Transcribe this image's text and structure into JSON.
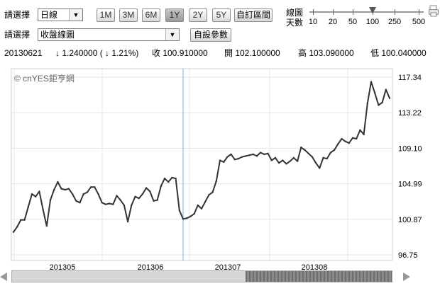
{
  "toolbar": {
    "row1_label": "請選擇",
    "period_select": "日線",
    "range_buttons": [
      {
        "label": "1M",
        "active": false
      },
      {
        "label": "3M",
        "active": false
      },
      {
        "label": "6M",
        "active": false
      },
      {
        "label": "1Y",
        "active": true
      },
      {
        "label": "2Y",
        "active": false
      },
      {
        "label": "5Y",
        "active": false
      }
    ],
    "custom_range_button": "自訂區間",
    "ma_label_line1": "線圖",
    "ma_label_line2": "天數",
    "ma_ticks": [
      "10",
      "20",
      "50",
      "100",
      "250",
      "500"
    ],
    "ma_selected": "100",
    "row2_label": "請選擇",
    "chart_type_select": "收盤線圖",
    "custom_params_button": "自設參數"
  },
  "quote": {
    "date": "20130621",
    "change": "↓ 1.240000 ( ↓ 1.21%)",
    "close": "收 100.910000",
    "open": "開 102.100000",
    "high": "高 103.090000",
    "low": "低 100.040000"
  },
  "watermark": "© cnYES鉅亨網",
  "colors": {
    "line": "#333333",
    "crosshair": "#66b3e6",
    "grid": "#e6e6e6"
  },
  "chart_data": {
    "type": "line",
    "x_tick_labels": [
      "201305",
      "201306",
      "201307",
      "201308"
    ],
    "y_tick_labels": [
      "117.34",
      "113.22",
      "109.10",
      "104.99",
      "100.87",
      "96.75"
    ],
    "ylim": [
      96.75,
      117.34
    ],
    "grid": true,
    "values": [
      99.4,
      100.0,
      100.8,
      100.8,
      102.3,
      103.8,
      103.5,
      104.1,
      102.0,
      100.1,
      103.1,
      104.3,
      105.2,
      104.4,
      104.3,
      104.4,
      103.8,
      103.0,
      102.8,
      103.8,
      104.0,
      104.6,
      104.6,
      103.8,
      102.8,
      102.6,
      102.7,
      102.6,
      103.6,
      103.1,
      102.5,
      100.6,
      102.5,
      103.5,
      103.3,
      103.8,
      104.5,
      104.1,
      103.0,
      103.1,
      104.7,
      105.6,
      105.2,
      105.7,
      105.6,
      101.9,
      100.91,
      101.0,
      101.2,
      101.5,
      102.5,
      102.1,
      102.9,
      103.7,
      104.0,
      105.3,
      107.7,
      107.5,
      108.1,
      108.4,
      107.8,
      107.9,
      108.1,
      108.2,
      108.3,
      108.4,
      108.2,
      108.6,
      108.4,
      108.5,
      107.7,
      108.0,
      107.4,
      107.7,
      107.3,
      107.6,
      108.0,
      107.6,
      109.2,
      108.9,
      108.5,
      108.1,
      107.4,
      106.8,
      108.0,
      107.9,
      108.6,
      108.9,
      109.6,
      110.2,
      109.9,
      109.7,
      110.3,
      110.2,
      111.2,
      110.7,
      114.3,
      116.8,
      115.5,
      114.1,
      114.4,
      115.9,
      114.9
    ],
    "highlighted_value": 100.91
  }
}
